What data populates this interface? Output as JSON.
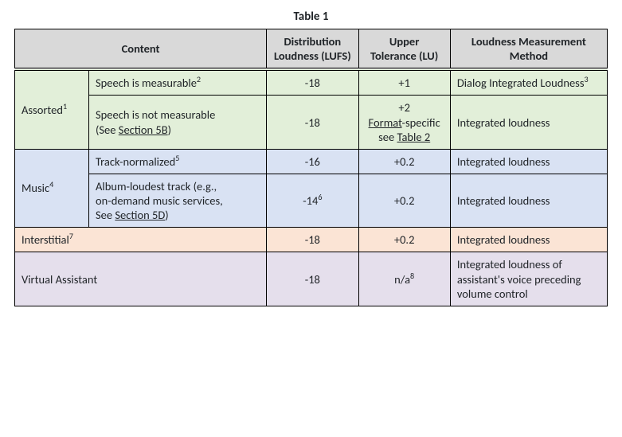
{
  "title": "Table 1",
  "header": {
    "content": "Content",
    "distribution": "Distribution Loudness (LUFS)",
    "upper": "Upper Tolerance (LU)",
    "method": "Loudness Measurement Method"
  },
  "assorted": {
    "label_pre": "Assorted",
    "label_sup": "1",
    "row1": {
      "sub_pre": "Speech is measurable",
      "sub_sup": "2",
      "dist": "-18",
      "upper": "+1",
      "method_pre": "Dialog Integrated Loudness",
      "method_sup": "3"
    },
    "row2": {
      "sub_line1": "Speech is not measurable",
      "sub_line2a": "(See ",
      "sub_line2b_u": "Section 5B",
      "sub_line2c": ")",
      "dist": "-18",
      "upper_line1": "+2",
      "upper_line2a_u": "Format",
      "upper_line2b": "-specific",
      "upper_line3a": "see ",
      "upper_line3b_u": "Table 2",
      "method": "Integrated loudness"
    }
  },
  "music": {
    "label_pre": "Music",
    "label_sup": "4",
    "row1": {
      "sub_pre": "Track-normalized",
      "sub_sup": "5",
      "dist": "-16",
      "upper": "+0.2",
      "method": "Integrated loudness"
    },
    "row2": {
      "sub_line1": "Album-loudest track (e.g.,",
      "sub_line2": "on-demand music services,",
      "sub_line3a": "See ",
      "sub_line3b_u": "Section 5D",
      "sub_line3c": ")",
      "dist_pre": "-14",
      "dist_sup": "6",
      "upper": "+0.2",
      "method": "Integrated loudness"
    }
  },
  "interstitial": {
    "label_pre": "Interstitial",
    "label_sup": "7",
    "dist": "-18",
    "upper": "+0.2",
    "method": "Integrated loudness"
  },
  "virtual": {
    "label": "Virtual Assistant",
    "dist": "-18",
    "upper_pre": "n/a",
    "upper_sup": "8",
    "method": "Integrated loudness of assistant's voice preceding volume control"
  },
  "colors": {
    "header_bg": "#d9d9d9",
    "green": "#e2efd9",
    "blue": "#d9e2f3",
    "orange": "#fbe4d5",
    "purple": "#e5dfec",
    "border": "#000000"
  }
}
